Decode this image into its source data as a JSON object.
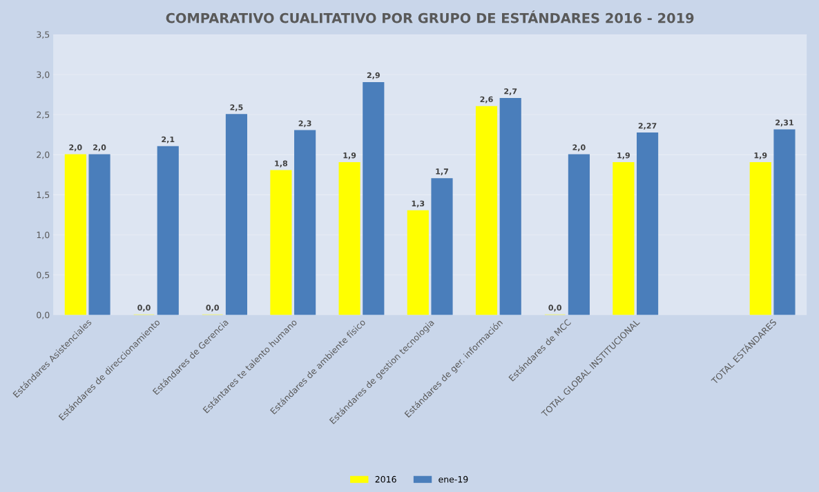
{
  "chart_data": {
    "type": "bar",
    "title": "COMPARATIVO CUALITATIVO POR GRUPO DE ESTÁNDARES 2016 - 2019",
    "categories": [
      "Estándares Asistenciales",
      "Estándares de direccionamiento",
      "Estándares de Gerencia",
      "Estántares te talento humano",
      "Estándares de ambiente físico",
      "Estándares de gestion tecnologia",
      "Estándares de ger. información",
      "Estándares de MCC",
      "TOTAL GLOBAL INSTITUCIONAL",
      null,
      "TOTAL ESTÁNDARES"
    ],
    "series": [
      {
        "name": "2016",
        "color": "#ffff00",
        "values": [
          2.0,
          0.0,
          0.0,
          1.8,
          1.9,
          1.3,
          2.6,
          0.0,
          1.9,
          null,
          1.9
        ],
        "value_labels": [
          "2,0",
          "0,0",
          "0,0",
          "1,8",
          "1,9",
          "1,3",
          "2,6",
          "0,0",
          "1,9",
          null,
          "1,9"
        ]
      },
      {
        "name": "ene-19",
        "color": "#4a7ebb",
        "values": [
          2.0,
          2.1,
          2.5,
          2.3,
          2.9,
          1.7,
          2.7,
          2.0,
          2.27,
          null,
          2.31
        ],
        "value_labels": [
          "2,0",
          "2,1",
          "2,5",
          "2,3",
          "2,9",
          "1,7",
          "2,7",
          "2,0",
          "2,27",
          null,
          "2,31"
        ]
      }
    ],
    "ylim": [
      0,
      3.5
    ],
    "yticks": [
      {
        "value": 0,
        "label": "0,0"
      },
      {
        "value": 0.5,
        "label": "0,5"
      },
      {
        "value": 1.0,
        "label": "1,0"
      },
      {
        "value": 1.5,
        "label": "1,5"
      },
      {
        "value": 2.0,
        "label": "2,0"
      },
      {
        "value": 2.5,
        "label": "2,5"
      },
      {
        "value": 3.0,
        "label": "3,0"
      },
      {
        "value": 3.5,
        "label": "3,5"
      }
    ],
    "grid": "y",
    "legend": "bottom"
  }
}
